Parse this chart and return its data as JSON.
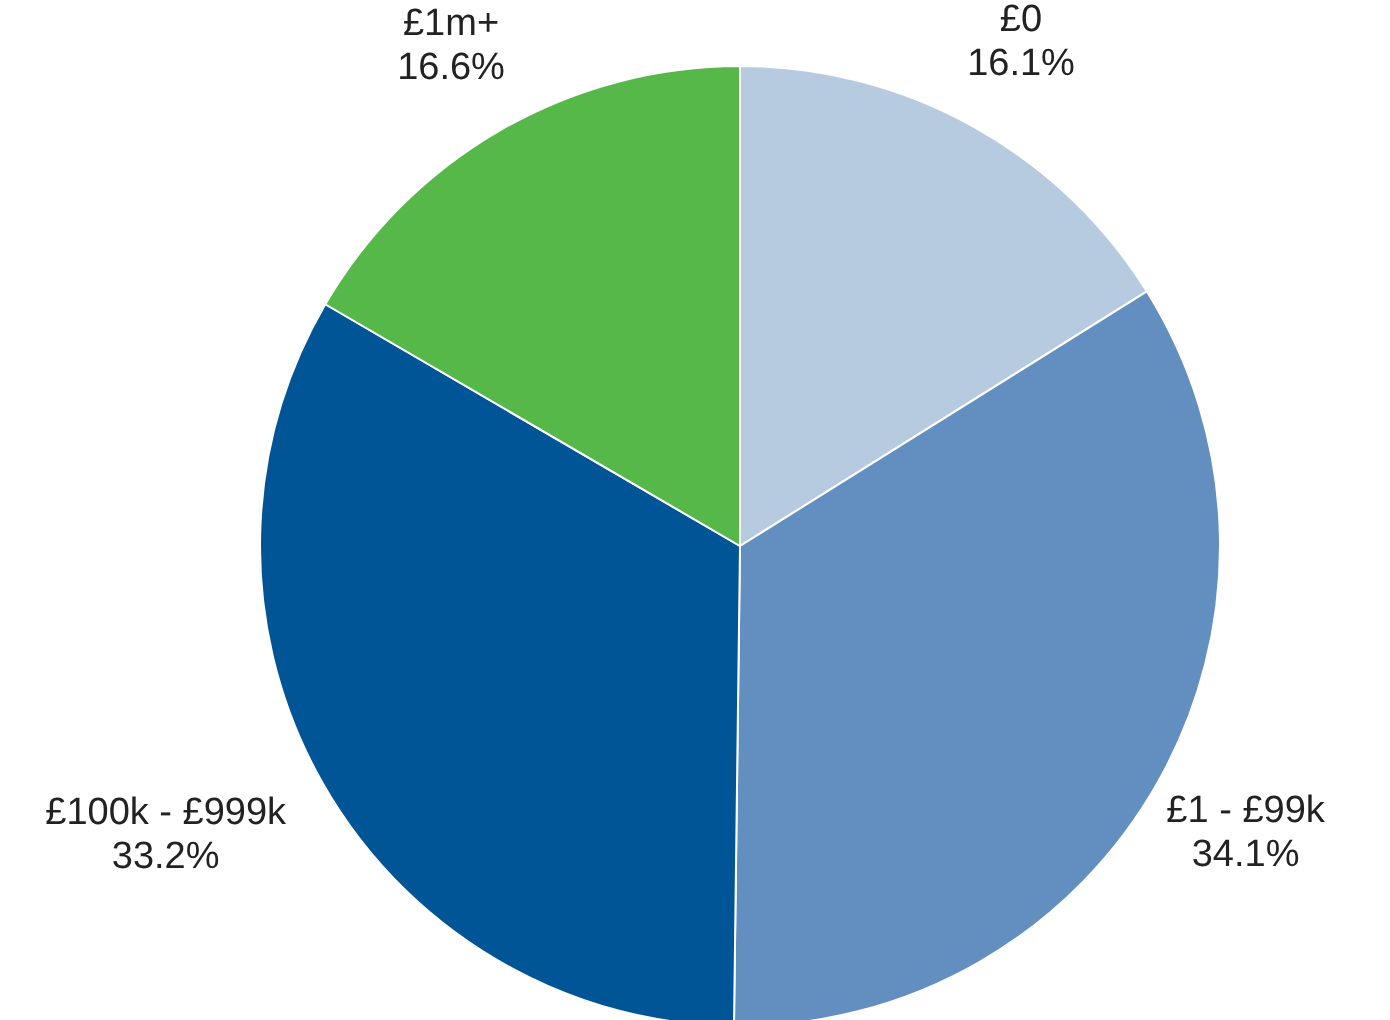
{
  "chart_data": {
    "type": "pie",
    "categories": [
      "£0",
      "£1 - £99k",
      "£100k - £999k",
      "£1m+"
    ],
    "values": [
      16.1,
      34.1,
      33.2,
      16.6
    ],
    "colors": [
      "#b7cbe0",
      "#628fbf",
      "#005596",
      "#55b848"
    ],
    "value_labels": [
      "16.1%",
      "34.1%",
      "33.2%",
      "16.6%"
    ]
  }
}
